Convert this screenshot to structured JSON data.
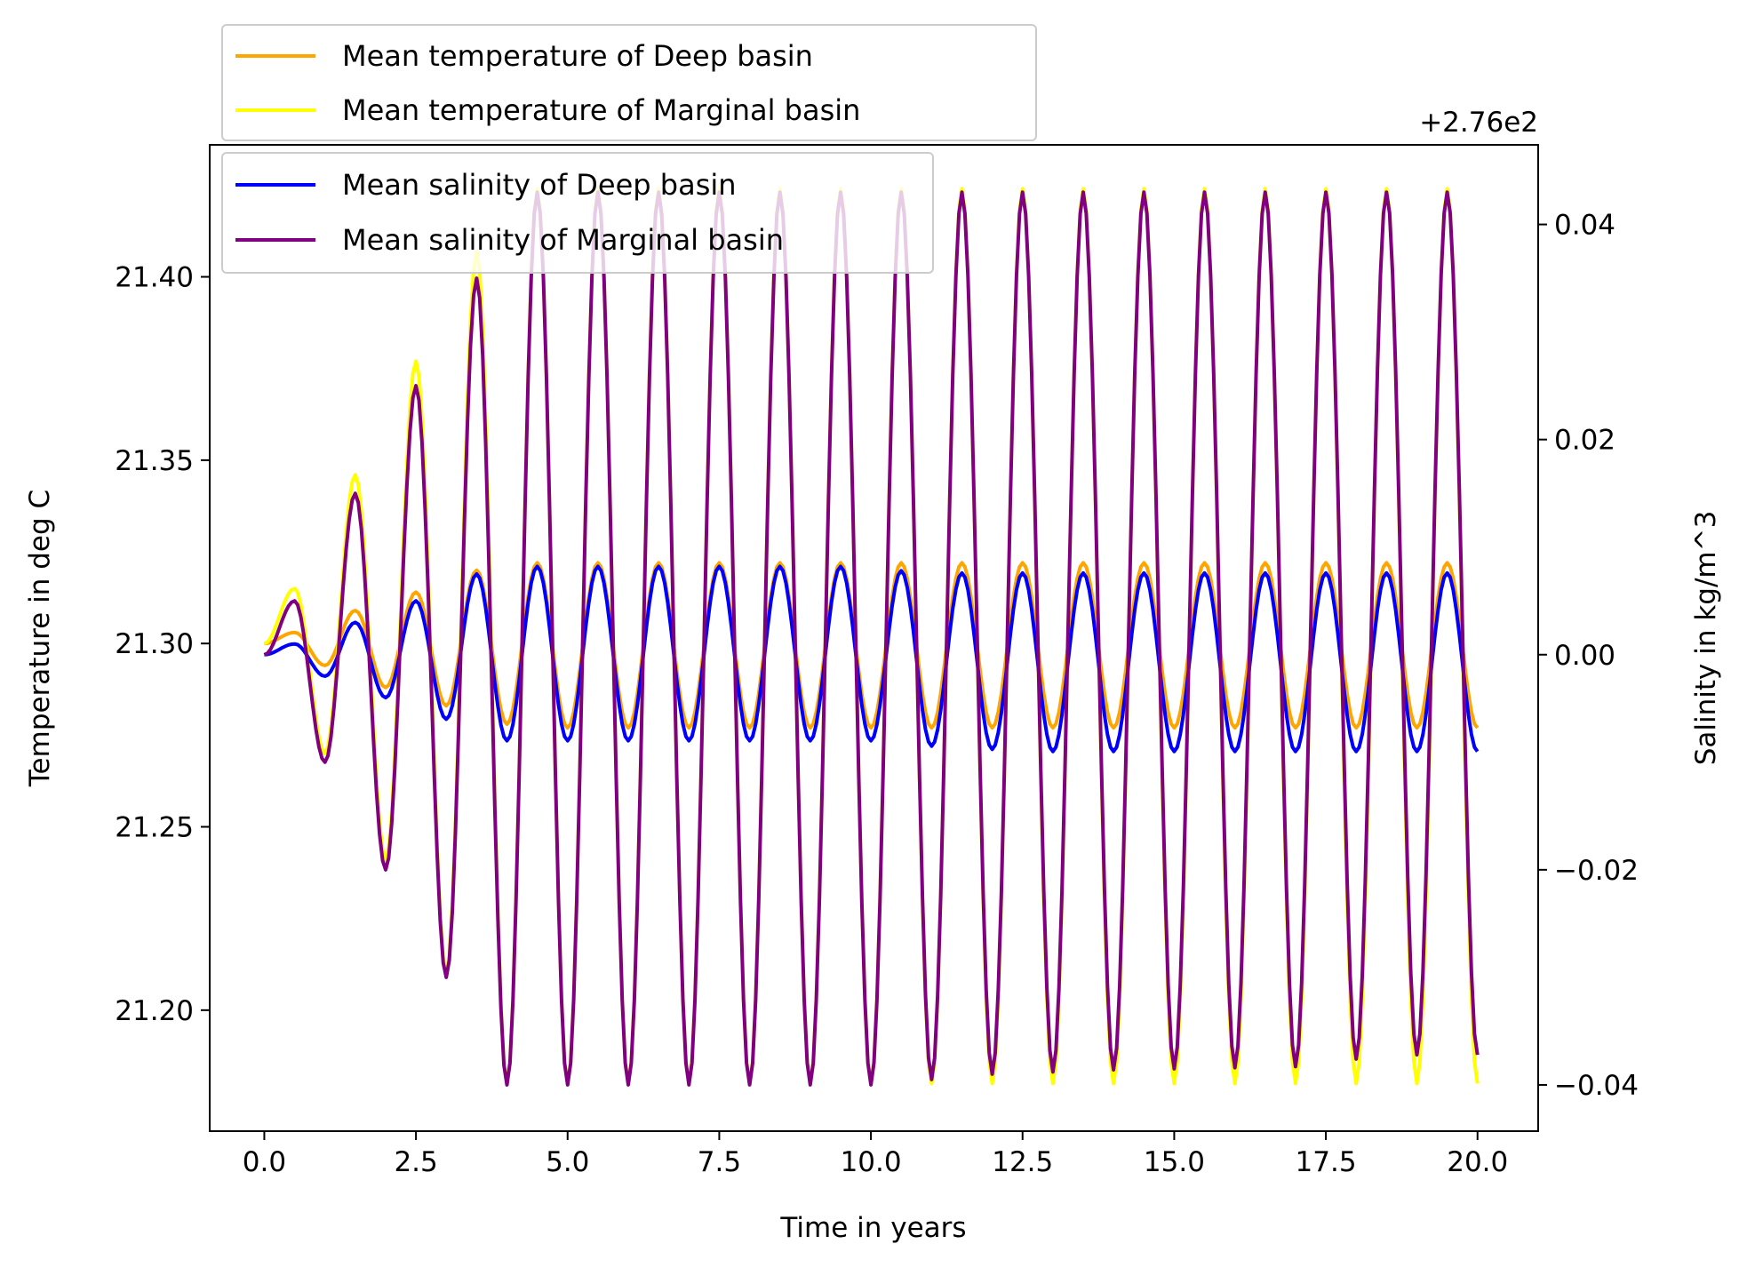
{
  "chart_data": {
    "type": "line",
    "xlabel": "Time in years",
    "ylabel_left": "Temperature in deg C",
    "ylabel_right": "Salinity in kg/m^3",
    "right_axis_offset_text": "+2.76e2",
    "xlim": [
      -0.9,
      21.0
    ],
    "ylim_left": [
      21.167,
      21.436
    ],
    "ylim_right": [
      -0.0443,
      0.0474
    ],
    "x_ticks": [
      0.0,
      2.5,
      5.0,
      7.5,
      10.0,
      12.5,
      15.0,
      17.5,
      20.0
    ],
    "x_tick_labels": [
      "0.0",
      "2.5",
      "5.0",
      "7.5",
      "10.0",
      "12.5",
      "15.0",
      "17.5",
      "20.0"
    ],
    "y_left_ticks": [
      21.2,
      21.25,
      21.3,
      21.35,
      21.4
    ],
    "y_left_tick_labels": [
      "21.20",
      "21.25",
      "21.30",
      "21.35",
      "21.40"
    ],
    "y_right_ticks": [
      -0.04,
      -0.02,
      0.0,
      0.02,
      0.04
    ],
    "y_right_tick_labels": [
      "−0.04",
      "−0.02",
      "0.00",
      "0.02",
      "0.04"
    ],
    "grid": false,
    "legend_temperature": {
      "placement": "above plot, top-left",
      "entries": [
        {
          "label": "Mean temperature of Deep basin",
          "color": "#FFA500"
        },
        {
          "label": "Mean temperature of Marginal basin",
          "color": "#FFFF00"
        }
      ]
    },
    "legend_salinity": {
      "placement": "top-left",
      "entries": [
        {
          "label": "Mean salinity of Deep basin",
          "color": "#0000FF"
        },
        {
          "label": "Mean salinity of Marginal basin",
          "color": "#800080"
        }
      ]
    },
    "series": [
      {
        "name": "Mean temperature of Deep basin",
        "axis": "left",
        "color": "#FFA500",
        "x": [
          0.0,
          0.5,
          1.0,
          1.5,
          2.0,
          2.5,
          3.0,
          3.5,
          4.0,
          4.5,
          5.0,
          5.5,
          6.0,
          6.5,
          7.0,
          7.5,
          8.0,
          8.5,
          9.0,
          9.5,
          10.0,
          10.5,
          11.0,
          11.5,
          12.0,
          12.5,
          13.0,
          13.5,
          14.0,
          14.5,
          15.0,
          15.5,
          16.0,
          16.5,
          17.0,
          17.5,
          18.0,
          18.5,
          19.0,
          19.5,
          20.0
        ],
        "y": [
          21.3,
          21.303,
          21.294,
          21.309,
          21.288,
          21.314,
          21.283,
          21.32,
          21.278,
          21.322,
          21.277,
          21.322,
          21.277,
          21.322,
          21.277,
          21.322,
          21.277,
          21.322,
          21.277,
          21.322,
          21.277,
          21.322,
          21.277,
          21.322,
          21.277,
          21.322,
          21.277,
          21.322,
          21.277,
          21.322,
          21.277,
          21.322,
          21.277,
          21.322,
          21.277,
          21.322,
          21.277,
          21.322,
          21.277,
          21.322,
          21.277
        ]
      },
      {
        "name": "Mean temperature of Marginal basin",
        "axis": "left",
        "color": "#FFFF00",
        "x": [
          0.0,
          0.5,
          1.0,
          1.5,
          2.0,
          2.5,
          3.0,
          3.5,
          4.0,
          4.5,
          5.0,
          5.5,
          6.0,
          6.5,
          7.0,
          7.5,
          8.0,
          8.5,
          9.0,
          9.5,
          10.0,
          10.5,
          11.0,
          11.5,
          12.0,
          12.5,
          13.0,
          13.5,
          14.0,
          14.5,
          15.0,
          15.5,
          16.0,
          16.5,
          17.0,
          17.5,
          18.0,
          18.5,
          19.0,
          19.5,
          20.0
        ],
        "y": [
          21.3,
          21.315,
          21.27,
          21.346,
          21.241,
          21.377,
          21.21,
          21.407,
          21.18,
          21.424,
          21.18,
          21.424,
          21.18,
          21.424,
          21.18,
          21.424,
          21.18,
          21.424,
          21.18,
          21.424,
          21.18,
          21.424,
          21.18,
          21.424,
          21.18,
          21.424,
          21.18,
          21.424,
          21.18,
          21.424,
          21.18,
          21.424,
          21.18,
          21.424,
          21.18,
          21.424,
          21.18,
          21.424,
          21.18,
          21.424,
          21.18
        ]
      },
      {
        "name": "Mean salinity of Deep basin",
        "axis": "right",
        "color": "#0000FF",
        "x": [
          0.0,
          0.5,
          1.0,
          1.5,
          2.0,
          2.5,
          3.0,
          3.5,
          4.0,
          4.5,
          5.0,
          5.5,
          6.0,
          6.5,
          7.0,
          7.5,
          8.0,
          8.5,
          9.0,
          9.5,
          10.0,
          10.5,
          11.0,
          11.5,
          12.0,
          12.5,
          13.0,
          13.5,
          14.0,
          14.5,
          15.0,
          15.5,
          16.0,
          16.5,
          17.0,
          17.5,
          18.0,
          18.5,
          19.0,
          19.5,
          20.0
        ],
        "y": [
          0.0,
          0.001,
          -0.002,
          0.003,
          -0.004,
          0.005,
          -0.006,
          0.0075,
          -0.008,
          0.0082,
          -0.008,
          0.0082,
          -0.008,
          0.0082,
          -0.008,
          0.0082,
          -0.008,
          0.0082,
          -0.008,
          0.0082,
          -0.008,
          0.0078,
          -0.0085,
          0.0076,
          -0.0088,
          0.0076,
          -0.009,
          0.0076,
          -0.009,
          0.0076,
          -0.009,
          0.0076,
          -0.009,
          0.0076,
          -0.009,
          0.0076,
          -0.009,
          0.0076,
          -0.009,
          0.0076,
          -0.009
        ]
      },
      {
        "name": "Mean salinity of Marginal basin",
        "axis": "right",
        "color": "#800080",
        "x": [
          0.0,
          0.5,
          1.0,
          1.5,
          2.0,
          2.5,
          3.0,
          3.5,
          4.0,
          4.5,
          5.0,
          5.5,
          6.0,
          6.5,
          7.0,
          7.5,
          8.0,
          8.5,
          9.0,
          9.5,
          10.0,
          10.5,
          11.0,
          11.5,
          12.0,
          12.5,
          13.0,
          13.5,
          14.0,
          14.5,
          15.0,
          15.5,
          16.0,
          16.5,
          17.0,
          17.5,
          18.0,
          18.5,
          19.0,
          19.5,
          20.0
        ],
        "y": [
          0.0,
          0.005,
          -0.01,
          0.015,
          -0.02,
          0.025,
          -0.03,
          0.035,
          -0.04,
          0.043,
          -0.04,
          0.043,
          -0.04,
          0.043,
          -0.04,
          0.043,
          -0.04,
          0.043,
          -0.04,
          0.043,
          -0.04,
          0.043,
          -0.0395,
          0.043,
          -0.039,
          0.043,
          -0.0388,
          0.043,
          -0.0386,
          0.043,
          -0.0385,
          0.043,
          -0.0384,
          0.043,
          -0.0383,
          0.043,
          -0.0376,
          0.043,
          -0.0372,
          0.043,
          -0.0372
        ]
      }
    ]
  }
}
